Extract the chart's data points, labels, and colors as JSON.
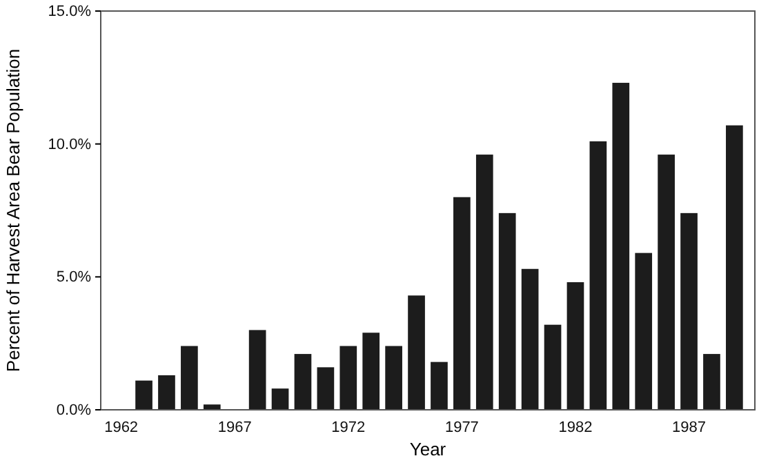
{
  "chart_data": {
    "type": "bar",
    "xlabel": "Year",
    "ylabel": "Percent of Harvest Area Bear Population",
    "categories": [
      "1962",
      null,
      null,
      null,
      null,
      "1967",
      null,
      null,
      null,
      null,
      "1972",
      null,
      null,
      null,
      null,
      "1977",
      null,
      null,
      null,
      null,
      "1982",
      null,
      null,
      null,
      null,
      "1987",
      null,
      null
    ],
    "values": [
      0,
      1.1,
      1.3,
      2.4,
      0.2,
      0,
      3.0,
      0.8,
      2.1,
      1.6,
      2.4,
      2.9,
      2.4,
      4.3,
      1.8,
      8.0,
      9.6,
      7.4,
      5.3,
      3.2,
      4.8,
      10.1,
      12.3,
      5.9,
      9.6,
      7.4,
      2.1,
      10.7
    ],
    "color": "#1c1c1c",
    "ylim": [
      0,
      15
    ],
    "yticks": [
      {
        "value": 0,
        "label": "0.0%"
      },
      {
        "value": 5,
        "label": "5.0%"
      },
      {
        "value": 10,
        "label": "10.0%"
      },
      {
        "value": 15,
        "label": "15.0%"
      }
    ],
    "grid": false
  }
}
